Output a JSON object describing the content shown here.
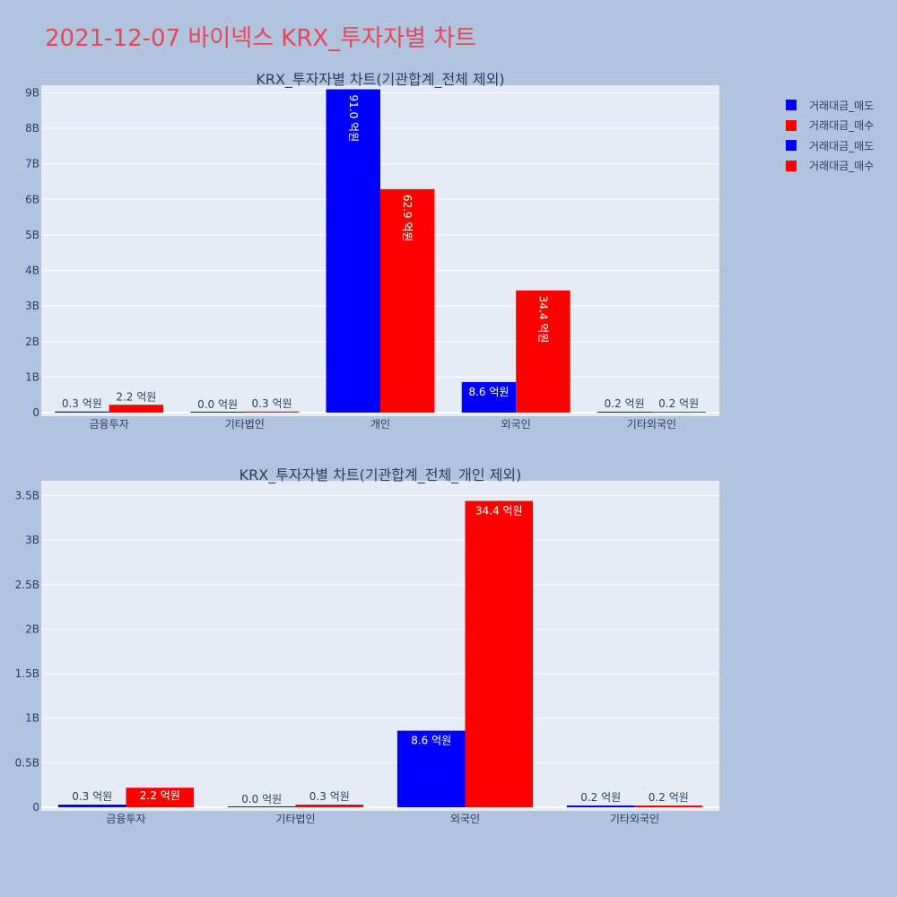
{
  "page_title": "2021-12-07 바이넥스 KRX_투자자별 차트",
  "legend": [
    {
      "label": "거래대금_매도",
      "color": "#0000ff"
    },
    {
      "label": "거래대금_매수",
      "color": "#ff0000"
    },
    {
      "label": "거래대금_매도",
      "color": "#0000ff"
    },
    {
      "label": "거래대금_매수",
      "color": "#ff0000"
    }
  ],
  "chart_data": [
    {
      "type": "bar",
      "title": "KRX_투자자별 차트(기관합계_전체 제외)",
      "categories": [
        "금융투자",
        "기타법인",
        "개인",
        "외국인",
        "기타외국인"
      ],
      "series": [
        {
          "name": "거래대금_매도",
          "color": "#0000ff",
          "values": [
            30000000,
            0,
            9100000000,
            860000000,
            20000000
          ],
          "labels": [
            "0.3 억원",
            "0.0 억원",
            "91.0 억원",
            "8.6 억원",
            "0.2 억원"
          ]
        },
        {
          "name": "거래대금_매수",
          "color": "#ff0000",
          "values": [
            220000000,
            30000000,
            6290000000,
            3440000000,
            20000000
          ],
          "labels": [
            "2.2 억원",
            "0.3 억원",
            "62.9 억원",
            "34.4 억원",
            "0.2 억원"
          ]
        }
      ],
      "ylim": [
        0,
        9800000000
      ],
      "yticks": [
        0,
        1000000000,
        2000000000,
        3000000000,
        4000000000,
        5000000000,
        6000000000,
        7000000000,
        8000000000,
        9000000000
      ],
      "ytick_labels": [
        "0",
        "1B",
        "2B",
        "3B",
        "4B",
        "5B",
        "6B",
        "7B",
        "8B",
        "9B"
      ],
      "label_orientation": "vertical",
      "grid": true
    },
    {
      "type": "bar",
      "title": "KRX_투자자별 차트(기관합계_전체_개인 제외)",
      "categories": [
        "금융투자",
        "기타법인",
        "외국인",
        "기타외국인"
      ],
      "series": [
        {
          "name": "거래대금_매도",
          "color": "#0000ff",
          "values": [
            30000000,
            0,
            860000000,
            20000000
          ],
          "labels": [
            "0.3 억원",
            "0.0 억원",
            "8.6 억원",
            "0.2 억원"
          ]
        },
        {
          "name": "거래대금_매수",
          "color": "#ff0000",
          "values": [
            220000000,
            30000000,
            3440000000,
            20000000
          ],
          "labels": [
            "2.2 억원",
            "0.3 억원",
            "34.4 억원",
            "0.2 억원"
          ]
        }
      ],
      "ylim": [
        0,
        3650000000
      ],
      "yticks": [
        0,
        500000000,
        1000000000,
        1500000000,
        2000000000,
        2500000000,
        3000000000,
        3500000000
      ],
      "ytick_labels": [
        "0",
        "0.5B",
        "1B",
        "1.5B",
        "2B",
        "2.5B",
        "3B",
        "3.5B"
      ],
      "label_orientation": "horizontal",
      "grid": true
    }
  ]
}
